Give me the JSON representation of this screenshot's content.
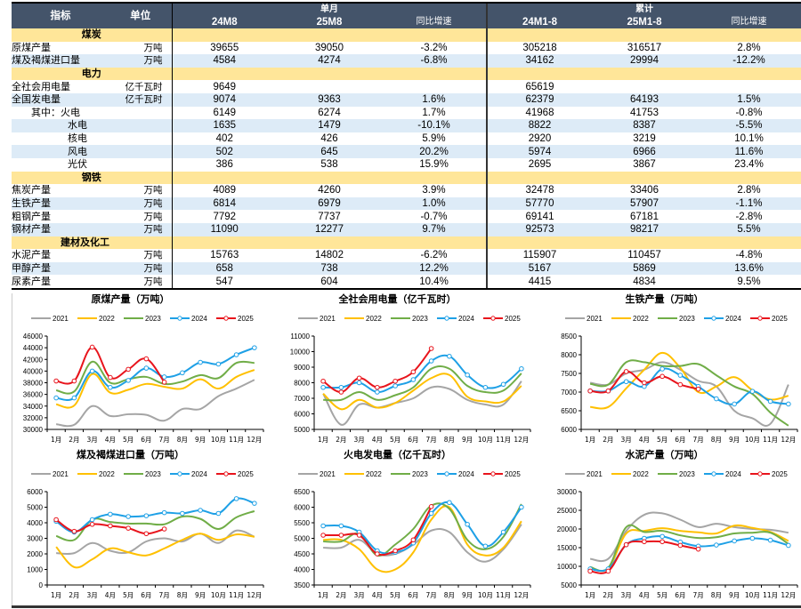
{
  "table": {
    "headers": {
      "indicator": "指标",
      "unit": "单位",
      "monthly_group": "单月",
      "cumulative_group": "累计",
      "m_prev": "24M8",
      "m_curr": "25M8",
      "m_yoy": "同比增速",
      "c_prev": "24M1-8",
      "c_curr": "25M1-8",
      "c_yoy": "同比增速"
    },
    "sections": [
      {
        "name": "煤炭",
        "rows": [
          {
            "name": "原煤产量",
            "unit": "万吨",
            "m_prev": "39655",
            "m_curr": "39050",
            "m_yoy": "-3.2%",
            "c_prev": "305218",
            "c_curr": "316517",
            "c_yoy": "2.8%"
          },
          {
            "name": "煤及褐煤进口量",
            "unit": "万吨",
            "m_prev": "4584",
            "m_curr": "4274",
            "m_yoy": "-6.8%",
            "c_prev": "34162",
            "c_curr": "29994",
            "c_yoy": "-12.2%"
          }
        ]
      },
      {
        "name": "电力",
        "rows": [
          {
            "name": "全社会用电量",
            "unit": "亿千瓦时",
            "m_prev": "9649",
            "m_curr": "",
            "m_yoy": "",
            "c_prev": "65619",
            "c_curr": "",
            "c_yoy": ""
          },
          {
            "name": "全国发电量",
            "unit": "亿千瓦时",
            "m_prev": "9074",
            "m_curr": "9363",
            "m_yoy": "1.6%",
            "c_prev": "62379",
            "c_curr": "64193",
            "c_yoy": "1.5%"
          },
          {
            "name": "其中：火电",
            "unit": "",
            "indent": 1,
            "m_prev": "6149",
            "m_curr": "6274",
            "m_yoy": "1.7%",
            "c_prev": "41968",
            "c_curr": "41753",
            "c_yoy": "-0.8%"
          },
          {
            "name": "水电",
            "unit": "",
            "indent": 2,
            "m_prev": "1635",
            "m_curr": "1479",
            "m_yoy": "-10.1%",
            "c_prev": "8822",
            "c_curr": "8387",
            "c_yoy": "-5.5%"
          },
          {
            "name": "核电",
            "unit": "",
            "indent": 2,
            "m_prev": "402",
            "m_curr": "426",
            "m_yoy": "5.9%",
            "c_prev": "2920",
            "c_curr": "3219",
            "c_yoy": "10.1%"
          },
          {
            "name": "风电",
            "unit": "",
            "indent": 2,
            "m_prev": "502",
            "m_curr": "645",
            "m_yoy": "20.2%",
            "c_prev": "5974",
            "c_curr": "6966",
            "c_yoy": "11.6%"
          },
          {
            "name": "光伏",
            "unit": "",
            "indent": 2,
            "m_prev": "386",
            "m_curr": "538",
            "m_yoy": "15.9%",
            "c_prev": "2695",
            "c_curr": "3867",
            "c_yoy": "23.4%"
          }
        ]
      },
      {
        "name": "钢铁",
        "rows": [
          {
            "name": "焦炭产量",
            "unit": "万吨",
            "m_prev": "4089",
            "m_curr": "4260",
            "m_yoy": "3.9%",
            "c_prev": "32478",
            "c_curr": "33406",
            "c_yoy": "2.8%"
          },
          {
            "name": "生铁产量",
            "unit": "万吨",
            "m_prev": "6814",
            "m_curr": "6979",
            "m_yoy": "1.0%",
            "c_prev": "57770",
            "c_curr": "57907",
            "c_yoy": "-1.1%"
          },
          {
            "name": "粗钢产量",
            "unit": "万吨",
            "m_prev": "7792",
            "m_curr": "7737",
            "m_yoy": "-0.7%",
            "c_prev": "69141",
            "c_curr": "67181",
            "c_yoy": "-2.8%"
          },
          {
            "name": "钢材产量",
            "unit": "万吨",
            "m_prev": "11090",
            "m_curr": "12277",
            "m_yoy": "9.7%",
            "c_prev": "92573",
            "c_curr": "98217",
            "c_yoy": "5.5%"
          }
        ]
      },
      {
        "name": "建材及化工",
        "rows": [
          {
            "name": "水泥产量",
            "unit": "万吨",
            "m_prev": "15763",
            "m_curr": "14802",
            "m_yoy": "-6.2%",
            "c_prev": "115907",
            "c_curr": "110457",
            "c_yoy": "-4.8%"
          },
          {
            "name": "甲醇产量",
            "unit": "万吨",
            "m_prev": "658",
            "m_curr": "738",
            "m_yoy": "12.2%",
            "c_prev": "5167",
            "c_curr": "5869",
            "c_yoy": "13.6%"
          },
          {
            "name": "尿素产量",
            "unit": "万吨",
            "m_prev": "547",
            "m_curr": "604",
            "m_yoy": "10.4%",
            "c_prev": "4415",
            "c_curr": "4834",
            "c_yoy": "9.5%"
          }
        ]
      }
    ]
  },
  "series_colors": {
    "2021": "#a5a5a5",
    "2022": "#ffc000",
    "2023": "#70ad47",
    "2024": "#1ea0e6",
    "2025": "#e8141c"
  },
  "chart_data": [
    {
      "type": "line",
      "title": "原煤产量（万吨）",
      "categories": [
        "1月",
        "2月",
        "3月",
        "4月",
        "5月",
        "6月",
        "7月",
        "8月",
        "9月",
        "10月",
        "11月",
        "12月"
      ],
      "ylim": [
        30000,
        46000
      ],
      "ystep": 2000,
      "legend": "top",
      "series": [
        {
          "name": "2021",
          "values": [
            30900,
            30800,
            34000,
            32300,
            32600,
            32500,
            31500,
            33500,
            33500,
            35700,
            37000,
            38500
          ],
          "markers": false
        },
        {
          "name": "2022",
          "values": [
            34300,
            34100,
            39500,
            36300,
            36800,
            37800,
            37300,
            37000,
            38600,
            37000,
            39000,
            40200
          ],
          "markers": false
        },
        {
          "name": "2023",
          "values": [
            36700,
            36500,
            41600,
            38000,
            38600,
            39000,
            37800,
            38200,
            39300,
            38800,
            41400,
            41400
          ],
          "markers": false
        },
        {
          "name": "2024",
          "values": [
            35400,
            35400,
            40000,
            37200,
            38400,
            40500,
            39000,
            39700,
            41500,
            41200,
            42800,
            44000
          ],
          "markers": true
        },
        {
          "name": "2025",
          "values": [
            38300,
            38300,
            44100,
            38900,
            40300,
            42100,
            38100
          ],
          "markers": true
        }
      ]
    },
    {
      "type": "line",
      "title": "全社会用电量（亿千瓦时）",
      "categories": [
        "1月",
        "2月",
        "3月",
        "4月",
        "5月",
        "6月",
        "7月",
        "8月",
        "9月",
        "10月",
        "11月",
        "12月"
      ],
      "ylim": [
        5000,
        11000
      ],
      "ystep": 1000,
      "legend": "top",
      "series": [
        {
          "name": "2021",
          "values": [
            7300,
            5300,
            6600,
            6400,
            6700,
            7000,
            7700,
            7600,
            6900,
            6600,
            6600,
            8100
          ],
          "markers": false
        },
        {
          "name": "2022",
          "values": [
            7300,
            6300,
            6900,
            6400,
            6700,
            7500,
            8300,
            8500,
            7100,
            6800,
            6800,
            7800
          ],
          "markers": false
        },
        {
          "name": "2023",
          "values": [
            6900,
            6900,
            7400,
            6900,
            7200,
            7700,
            8900,
            8900,
            7800,
            7400,
            7500,
            8600
          ],
          "markers": false
        },
        {
          "name": "2024",
          "values": [
            7700,
            7700,
            8000,
            7400,
            7800,
            8200,
            9400,
            9700,
            8500,
            7700,
            7900,
            8900
          ],
          "markers": true
        },
        {
          "name": "2025",
          "values": [
            8100,
            7400,
            8300,
            7700,
            8100,
            8700,
            10200
          ],
          "markers": true
        }
      ]
    },
    {
      "type": "line",
      "title": "生铁产量（万吨）",
      "categories": [
        "1月",
        "2月",
        "3月",
        "4月",
        "5月",
        "6月",
        "7月",
        "8月",
        "9月",
        "10月",
        "11月",
        "12月"
      ],
      "ylim": [
        6000,
        8500
      ],
      "ystep": 500,
      "legend": "top",
      "series": [
        {
          "name": "2021",
          "values": [
            7250,
            7200,
            7500,
            7600,
            7800,
            7600,
            7300,
            7150,
            6500,
            6300,
            6150,
            7200
          ],
          "markers": false
        },
        {
          "name": "2022",
          "values": [
            6600,
            6600,
            7100,
            7600,
            8050,
            7650,
            7000,
            7150,
            7400,
            7050,
            6800,
            6900
          ],
          "markers": false
        },
        {
          "name": "2023",
          "values": [
            7220,
            7200,
            7800,
            7800,
            7700,
            7700,
            7750,
            7450,
            7150,
            6950,
            6450,
            6100
          ],
          "markers": false
        },
        {
          "name": "2024",
          "values": [
            7030,
            7030,
            7280,
            7150,
            7620,
            7450,
            7150,
            6820,
            6680,
            7020,
            6750,
            6680
          ],
          "markers": true
        },
        {
          "name": "2025",
          "values": [
            7030,
            7030,
            7550,
            7250,
            7420,
            7200,
            7080
          ],
          "markers": true
        }
      ]
    },
    {
      "type": "line",
      "title": "煤及褐煤进口量（万吨）",
      "categories": [
        "1月",
        "2月",
        "3月",
        "4月",
        "5月",
        "6月",
        "7月",
        "8月",
        "9月",
        "10月",
        "11月",
        "12月"
      ],
      "ylim": [
        0,
        6000
      ],
      "ystep": 1000,
      "legend": "top",
      "series": [
        {
          "name": "2021",
          "values": [
            2050,
            2050,
            2700,
            2200,
            2100,
            2800,
            3000,
            2800,
            3300,
            2700,
            3500,
            3100
          ],
          "markers": false
        },
        {
          "name": "2022",
          "values": [
            2450,
            1150,
            1650,
            2350,
            2100,
            1900,
            2350,
            2900,
            3300,
            2900,
            3250,
            3100
          ],
          "markers": false
        },
        {
          "name": "2023",
          "values": [
            3150,
            2900,
            4200,
            4050,
            3950,
            3950,
            3900,
            4400,
            4250,
            3600,
            4350,
            4750
          ],
          "markers": false
        },
        {
          "name": "2024",
          "values": [
            4100,
            3400,
            4200,
            4550,
            4400,
            4450,
            4650,
            4600,
            4800,
            4600,
            5550,
            5250
          ],
          "markers": true
        },
        {
          "name": "2025",
          "values": [
            4200,
            3450,
            3900,
            3800,
            3650,
            3300,
            3600
          ],
          "markers": true
        }
      ]
    },
    {
      "type": "line",
      "title": "火电发电量（亿千瓦时）",
      "categories": [
        "1月",
        "2月",
        "3月",
        "4月",
        "5月",
        "6月",
        "7月",
        "8月",
        "9月",
        "10月",
        "11月",
        "12月"
      ],
      "ylim": [
        3500,
        6500
      ],
      "ystep": 500,
      "legend": "top",
      "series": [
        {
          "name": "2021",
          "values": [
            4700,
            4700,
            4950,
            4500,
            4500,
            4800,
            5250,
            5200,
            4550,
            4250,
            4650,
            5450
          ],
          "markers": false
        },
        {
          "name": "2022",
          "values": [
            4950,
            4950,
            4650,
            4000,
            4000,
            4550,
            5600,
            6000,
            4800,
            4450,
            4700,
            5550
          ],
          "markers": false
        },
        {
          "name": "2023",
          "values": [
            4900,
            4900,
            5150,
            4450,
            4800,
            5300,
            6050,
            5950,
            4950,
            4650,
            5050,
            6100
          ],
          "markers": false
        },
        {
          "name": "2024",
          "values": [
            5400,
            5400,
            5200,
            4600,
            4550,
            4850,
            5800,
            6150,
            5450,
            4750,
            5200,
            6000
          ],
          "markers": true
        },
        {
          "name": "2025",
          "values": [
            5100,
            5100,
            5100,
            4500,
            4600,
            4950,
            6020
          ],
          "markers": true
        }
      ]
    },
    {
      "type": "line",
      "title": "水泥产量（万吨）",
      "categories": [
        "1月",
        "2月",
        "3月",
        "4月",
        "5月",
        "6月",
        "7月",
        "8月",
        "9月",
        "10月",
        "11月",
        "12月"
      ],
      "ylim": [
        5000,
        30000
      ],
      "ystep": 5000,
      "legend": "top",
      "series": [
        {
          "name": "2021",
          "values": [
            12000,
            12000,
            19500,
            23800,
            24200,
            22500,
            20500,
            21400,
            20500,
            20000,
            19800,
            19000
          ],
          "markers": false
        },
        {
          "name": "2022",
          "values": [
            9500,
            9500,
            18800,
            19500,
            20200,
            19500,
            19100,
            18800,
            20900,
            20300,
            19200,
            16800
          ],
          "markers": false
        },
        {
          "name": "2023",
          "values": [
            9800,
            9600,
            20500,
            19200,
            19500,
            18300,
            17600,
            17800,
            18800,
            19000,
            19000,
            16000
          ],
          "markers": false
        },
        {
          "name": "2024",
          "values": [
            9300,
            9300,
            15800,
            17500,
            18000,
            16500,
            15400,
            15700,
            16800,
            17500,
            17000,
            15600
          ],
          "markers": true
        },
        {
          "name": "2025",
          "values": [
            8700,
            8700,
            15800,
            16600,
            16600,
            15600,
            14600
          ],
          "markers": true
        }
      ]
    }
  ]
}
